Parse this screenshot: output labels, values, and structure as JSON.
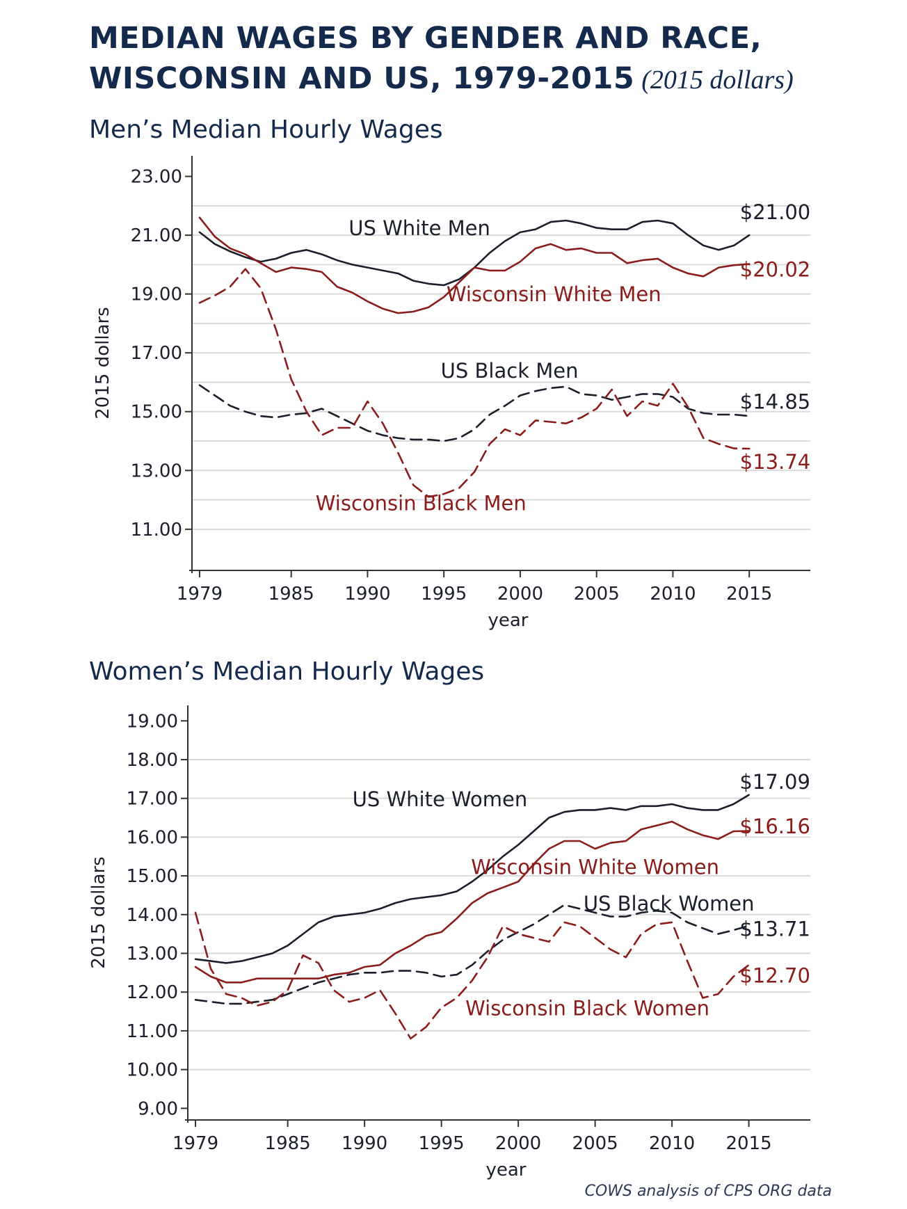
{
  "title_line1": "MEDIAN WAGES BY GENDER AND RACE,",
  "title_line2": "WISCONSIN AND US, 1979-2015",
  "title_sub": "(2015 dollars)",
  "source": "COWS analysis of CPS ORG data",
  "colors": {
    "navy": "#142a4c",
    "black_line": "#1a1f2b",
    "red_line": "#8b1c1c",
    "grid": "#d9d9d9"
  },
  "chart_data": [
    {
      "type": "line",
      "title": "Men’s Median Hourly Wages",
      "xlabel": "year",
      "ylabel": "2015 dollars",
      "xlim": [
        1978.5,
        2019
      ],
      "ylim": [
        9.6,
        23.7
      ],
      "xticks": [
        "1979",
        "1985",
        "1990",
        "1995",
        "2000",
        "2005",
        "2010",
        "2015"
      ],
      "yticks": [
        "23.00",
        "21.00",
        "19.00",
        "17.00",
        "15.00",
        "13.00",
        "11.00"
      ],
      "grid_values": [
        11,
        12,
        13,
        14,
        15,
        16,
        17,
        18,
        19,
        20,
        21,
        22
      ],
      "x": [
        1979,
        1980,
        1981,
        1982,
        1983,
        1984,
        1985,
        1986,
        1987,
        1988,
        1989,
        1990,
        1991,
        1992,
        1993,
        1994,
        1995,
        1996,
        1997,
        1998,
        1999,
        2000,
        2001,
        2002,
        2003,
        2004,
        2005,
        2006,
        2007,
        2008,
        2009,
        2010,
        2011,
        2012,
        2013,
        2014,
        2015
      ],
      "series": [
        {
          "name": "US White Men",
          "color": "#1a1f2b",
          "dash": false,
          "end_label": "$21.00",
          "values": [
            21.1,
            20.7,
            20.45,
            20.25,
            20.1,
            20.2,
            20.4,
            20.5,
            20.35,
            20.15,
            20.0,
            19.9,
            19.8,
            19.7,
            19.45,
            19.35,
            19.3,
            19.5,
            19.9,
            20.4,
            20.8,
            21.1,
            21.2,
            21.45,
            21.5,
            21.4,
            21.25,
            21.2,
            21.2,
            21.45,
            21.5,
            21.4,
            21.0,
            20.65,
            20.5,
            20.65,
            21.0
          ]
        },
        {
          "name": "Wisconsin White Men",
          "color": "#8b1c1c",
          "dash": false,
          "end_label": "$20.02",
          "values": [
            21.6,
            20.95,
            20.55,
            20.35,
            20.05,
            19.75,
            19.9,
            19.85,
            19.75,
            19.25,
            19.05,
            18.75,
            18.5,
            18.35,
            18.4,
            18.55,
            18.9,
            19.4,
            19.9,
            19.8,
            19.8,
            20.1,
            20.55,
            20.7,
            20.5,
            20.55,
            20.4,
            20.4,
            20.05,
            20.15,
            20.2,
            19.9,
            19.7,
            19.6,
            19.9,
            19.98,
            20.02
          ]
        },
        {
          "name": "US Black Men",
          "color": "#1a1f2b",
          "dash": true,
          "end_label": "$14.85",
          "values": [
            15.9,
            15.55,
            15.2,
            15.0,
            14.85,
            14.8,
            14.9,
            14.95,
            15.1,
            14.85,
            14.6,
            14.35,
            14.2,
            14.1,
            14.05,
            14.05,
            14.0,
            14.1,
            14.4,
            14.9,
            15.2,
            15.55,
            15.7,
            15.8,
            15.85,
            15.6,
            15.55,
            15.4,
            15.5,
            15.6,
            15.6,
            15.5,
            15.1,
            14.95,
            14.9,
            14.9,
            14.85
          ]
        },
        {
          "name": "Wisconsin Black Men",
          "color": "#8b1c1c",
          "dash": true,
          "end_label": "$13.74",
          "values": [
            18.7,
            18.95,
            19.25,
            19.85,
            19.2,
            17.8,
            16.1,
            15.0,
            14.2,
            14.45,
            14.45,
            15.35,
            14.6,
            13.6,
            12.5,
            12.1,
            12.2,
            12.4,
            12.95,
            13.9,
            14.4,
            14.2,
            14.7,
            14.65,
            14.6,
            14.8,
            15.1,
            15.75,
            14.85,
            15.35,
            15.2,
            15.95,
            15.15,
            14.1,
            13.9,
            13.75,
            13.74
          ]
        }
      ]
    },
    {
      "type": "line",
      "title": "Women’s Median Hourly Wages",
      "xlabel": "year",
      "ylabel": "2015 dollars",
      "xlim": [
        1978.5,
        2019
      ],
      "ylim": [
        8.7,
        19.4
      ],
      "xticks": [
        "1979",
        "1985",
        "1990",
        "1995",
        "2000",
        "2005",
        "2010",
        "2015"
      ],
      "yticks": [
        "19.00",
        "18.00",
        "17.00",
        "16.00",
        "15.00",
        "14.00",
        "13.00",
        "12.00",
        "11.00",
        "10.00",
        "9.00"
      ],
      "grid_values": [
        10,
        11,
        12,
        13,
        14,
        15,
        16,
        17,
        18
      ],
      "x": [
        1979,
        1980,
        1981,
        1982,
        1983,
        1984,
        1985,
        1986,
        1987,
        1988,
        1989,
        1990,
        1991,
        1992,
        1993,
        1994,
        1995,
        1996,
        1997,
        1998,
        1999,
        2000,
        2001,
        2002,
        2003,
        2004,
        2005,
        2006,
        2007,
        2008,
        2009,
        2010,
        2011,
        2012,
        2013,
        2014,
        2015
      ],
      "series": [
        {
          "name": "US White Women",
          "color": "#1a1f2b",
          "dash": false,
          "end_label": "$17.09",
          "values": [
            12.85,
            12.8,
            12.75,
            12.8,
            12.9,
            13.0,
            13.2,
            13.5,
            13.8,
            13.95,
            14.0,
            14.05,
            14.15,
            14.3,
            14.4,
            14.45,
            14.5,
            14.6,
            14.85,
            15.15,
            15.5,
            15.8,
            16.15,
            16.5,
            16.65,
            16.7,
            16.7,
            16.75,
            16.7,
            16.8,
            16.8,
            16.85,
            16.75,
            16.7,
            16.7,
            16.85,
            17.09
          ]
        },
        {
          "name": "Wisconsin White Women",
          "color": "#8b1c1c",
          "dash": false,
          "end_label": "$16.16",
          "values": [
            12.65,
            12.4,
            12.25,
            12.25,
            12.35,
            12.35,
            12.35,
            12.35,
            12.35,
            12.45,
            12.5,
            12.65,
            12.7,
            13.0,
            13.2,
            13.45,
            13.55,
            13.9,
            14.3,
            14.55,
            14.7,
            14.85,
            15.3,
            15.7,
            15.9,
            15.9,
            15.7,
            15.85,
            15.9,
            16.2,
            16.3,
            16.4,
            16.2,
            16.05,
            15.95,
            16.15,
            16.16
          ]
        },
        {
          "name": "US Black Women",
          "color": "#1a1f2b",
          "dash": true,
          "end_label": "$13.71",
          "values": [
            11.8,
            11.75,
            11.7,
            11.7,
            11.75,
            11.8,
            11.95,
            12.1,
            12.25,
            12.35,
            12.45,
            12.5,
            12.5,
            12.55,
            12.55,
            12.5,
            12.4,
            12.45,
            12.7,
            13.05,
            13.35,
            13.55,
            13.75,
            14.0,
            14.25,
            14.15,
            14.05,
            13.95,
            13.95,
            14.05,
            14.1,
            14.05,
            13.8,
            13.65,
            13.5,
            13.6,
            13.71
          ]
        },
        {
          "name": "Wisconsin Black Women",
          "color": "#8b1c1c",
          "dash": true,
          "end_label": "$12.70",
          "values": [
            14.05,
            12.6,
            11.95,
            11.85,
            11.65,
            11.75,
            12.05,
            12.95,
            12.75,
            12.05,
            11.75,
            11.85,
            12.05,
            11.45,
            10.8,
            11.1,
            11.6,
            11.85,
            12.3,
            12.9,
            13.7,
            13.5,
            13.4,
            13.3,
            13.8,
            13.7,
            13.4,
            13.1,
            12.9,
            13.5,
            13.75,
            13.8,
            12.8,
            11.85,
            11.95,
            12.4,
            12.7
          ]
        }
      ]
    }
  ]
}
